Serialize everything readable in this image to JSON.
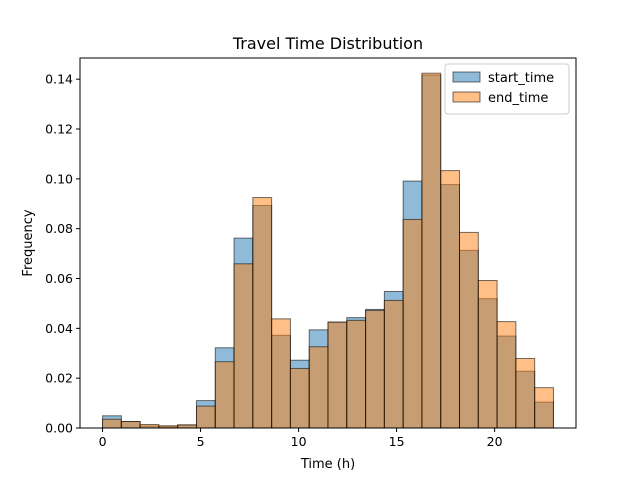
{
  "chart_data": {
    "type": "bar",
    "title": "Travel Time Distribution",
    "xlabel": "Time (h)",
    "ylabel": "Frequency",
    "xlim": [
      -1.15,
      24.15
    ],
    "ylim": [
      0,
      0.1485
    ],
    "bin_edges": [
      0.0,
      0.958,
      1.917,
      2.875,
      3.833,
      4.792,
      5.75,
      6.708,
      7.667,
      8.625,
      9.583,
      10.542,
      11.5,
      12.458,
      13.417,
      14.375,
      15.333,
      16.292,
      17.25,
      18.208,
      19.167,
      20.125,
      21.083,
      22.042,
      23.0
    ],
    "x_ticks": [
      0,
      5,
      10,
      15,
      20
    ],
    "x_tick_labels": [
      "0",
      "5",
      "10",
      "15",
      "20"
    ],
    "y_ticks": [
      0.0,
      0.02,
      0.04,
      0.06,
      0.08,
      0.1,
      0.12,
      0.14
    ],
    "y_tick_labels": [
      "0.00",
      "0.02",
      "0.04",
      "0.06",
      "0.08",
      "0.10",
      "0.12",
      "0.14"
    ],
    "legend_position": "upper right",
    "grid": false,
    "series": [
      {
        "name": "start_time",
        "color": "#1f77b4",
        "alpha": 0.5,
        "values": [
          0.0049,
          0.0026,
          0.0008,
          0.0005,
          0.0011,
          0.011,
          0.0322,
          0.0762,
          0.0893,
          0.0372,
          0.0272,
          0.0394,
          0.0425,
          0.0443,
          0.0476,
          0.0548,
          0.0991,
          0.1417,
          0.0977,
          0.0713,
          0.0519,
          0.0369,
          0.0228,
          0.0104
        ]
      },
      {
        "name": "end_time",
        "color": "#ff7f0e",
        "alpha": 0.5,
        "values": [
          0.0035,
          0.0026,
          0.0014,
          0.0009,
          0.0013,
          0.0088,
          0.0266,
          0.0659,
          0.0925,
          0.0438,
          0.0239,
          0.0326,
          0.0425,
          0.0432,
          0.0472,
          0.0512,
          0.0837,
          0.1424,
          0.1033,
          0.0785,
          0.0592,
          0.0427,
          0.0279,
          0.0162
        ]
      }
    ]
  }
}
